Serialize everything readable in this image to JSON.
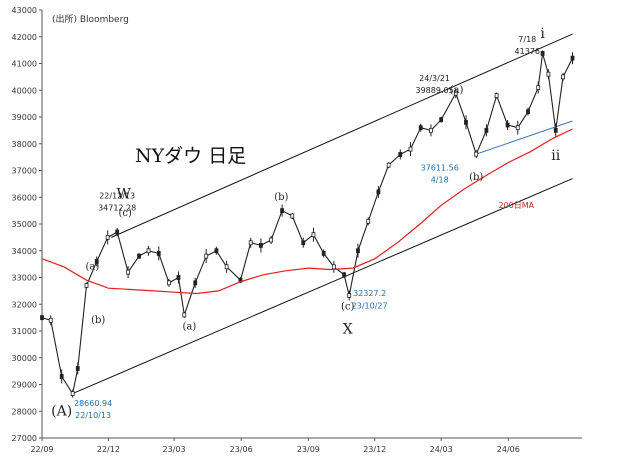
{
  "chart_data": {
    "type": "line",
    "title": "NYダウ 日足",
    "source": "(出所) Bloomberg",
    "ylim": [
      27000,
      43000
    ],
    "y_ticks": [
      27000,
      28000,
      29000,
      30000,
      31000,
      32000,
      33000,
      34000,
      35000,
      36000,
      37000,
      38000,
      39000,
      40000,
      41000,
      42000,
      43000
    ],
    "y_tick_labels": [
      "27000",
      "28000",
      "29000",
      "30000",
      "31000",
      "32000",
      "33000",
      "34000",
      "35000",
      "36000",
      "37000",
      "38000",
      "39000",
      "40000",
      "41000",
      "42000",
      "43000"
    ],
    "x_range": [
      "2022-09",
      "2024-08"
    ],
    "x_ticks": [
      "22/09",
      "22/12",
      "23/03",
      "23/06",
      "23/09",
      "23/12",
      "24/03",
      "24/06"
    ],
    "grid": false,
    "series": [
      {
        "name": "",
        "style": "candlestick-black",
        "x": [
          "2022-09-01",
          "2022-09-13",
          "2022-09-28",
          "2022-10-13",
          "2022-10-20",
          "2022-11-01",
          "2022-11-15",
          "2022-11-30",
          "2022-12-13",
          "2022-12-28",
          "2023-01-12",
          "2023-01-25",
          "2023-02-08",
          "2023-02-22",
          "2023-03-07",
          "2023-03-15",
          "2023-03-30",
          "2023-04-14",
          "2023-04-28",
          "2023-05-12",
          "2023-05-31",
          "2023-06-14",
          "2023-06-28",
          "2023-07-12",
          "2023-07-27",
          "2023-08-10",
          "2023-08-25",
          "2023-09-08",
          "2023-09-22",
          "2023-10-06",
          "2023-10-20",
          "2023-10-27",
          "2023-11-08",
          "2023-11-22",
          "2023-12-06",
          "2023-12-20",
          "2024-01-05",
          "2024-01-19",
          "2024-02-02",
          "2024-02-16",
          "2024-03-01",
          "2024-03-21",
          "2024-04-04",
          "2024-04-18",
          "2024-05-02",
          "2024-05-16",
          "2024-05-31",
          "2024-06-14",
          "2024-06-28",
          "2024-07-12",
          "2024-07-18",
          "2024-07-26",
          "2024-08-05",
          "2024-08-15",
          "2024-08-28"
        ],
        "values": [
          31500,
          31400,
          29300,
          28660,
          29600,
          32700,
          33600,
          34500,
          34700,
          33200,
          33800,
          34000,
          33900,
          32800,
          33000,
          31600,
          32800,
          33800,
          34000,
          33400,
          32900,
          34300,
          34200,
          34400,
          35500,
          35300,
          34300,
          34600,
          33900,
          33400,
          33100,
          32327,
          34000,
          35100,
          36200,
          37200,
          37600,
          37800,
          38600,
          38500,
          38900,
          39889,
          38800,
          37611,
          38500,
          39800,
          38700,
          38600,
          39200,
          40100,
          41376,
          40600,
          38500,
          40500,
          41200
        ]
      },
      {
        "name": "200日MA",
        "style": "line-red",
        "x": [
          "2022-09-01",
          "2022-10-01",
          "2022-11-01",
          "2022-12-01",
          "2023-01-01",
          "2023-02-01",
          "2023-03-01",
          "2023-04-01",
          "2023-05-01",
          "2023-06-01",
          "2023-07-01",
          "2023-08-01",
          "2023-09-01",
          "2023-10-01",
          "2023-11-01",
          "2023-12-01",
          "2024-01-01",
          "2024-02-01",
          "2024-03-01",
          "2024-04-01",
          "2024-05-01",
          "2024-06-01",
          "2024-07-01",
          "2024-08-01",
          "2024-08-28"
        ],
        "values": [
          33700,
          33400,
          32900,
          32600,
          32550,
          32500,
          32450,
          32400,
          32500,
          32850,
          33100,
          33250,
          33350,
          33300,
          33350,
          33700,
          34300,
          35000,
          35700,
          36300,
          36800,
          37300,
          37700,
          38200,
          38550
        ]
      }
    ],
    "trend_lines": [
      {
        "from": [
          "2022-10-13",
          28660
        ],
        "to": [
          "2024-08-28",
          36700
        ]
      },
      {
        "from": [
          "2022-12-05",
          34500
        ],
        "to": [
          "2024-08-28",
          42100
        ]
      },
      {
        "from": [
          "2024-04-18",
          37611
        ],
        "to": [
          "2024-08-28",
          38850
        ]
      }
    ],
    "annotations": [
      {
        "text": "22/12/13",
        "x": "2022-12-13",
        "y": 35950,
        "cls": "ann"
      },
      {
        "text": "34712.28",
        "x": "2022-12-13",
        "y": 35500,
        "cls": "ann"
      },
      {
        "text": "W",
        "x": "2022-12-22",
        "y": 35950,
        "cls": "wave-big"
      },
      {
        "text": "(c)",
        "x": "2022-12-24",
        "y": 35300,
        "cls": "wave"
      },
      {
        "text": "(a)",
        "x": "2022-11-09",
        "y": 33300,
        "cls": "wave"
      },
      {
        "text": "(b)",
        "x": "2022-11-17",
        "y": 31300,
        "cls": "wave"
      },
      {
        "text": "(a)",
        "x": "2023-03-22",
        "y": 31050,
        "cls": "wave"
      },
      {
        "text": "(b)",
        "x": "2023-07-26",
        "y": 35900,
        "cls": "wave"
      },
      {
        "text": "(c)",
        "x": "2023-10-25",
        "y": 31800,
        "cls": "wave"
      },
      {
        "text": "X",
        "x": "2023-10-25",
        "y": 30900,
        "cls": "wave-big"
      },
      {
        "text": "32327.2",
        "x": "2023-11-24",
        "y": 32300,
        "cls": "ann-blue"
      },
      {
        "text": "23/10/27",
        "x": "2023-11-24",
        "y": 31850,
        "cls": "ann-blue"
      },
      {
        "text": "24/3/21",
        "x": "2024-02-21",
        "y": 40350,
        "cls": "ann"
      },
      {
        "text": "39889.05",
        "x": "2024-02-21",
        "y": 39900,
        "cls": "ann"
      },
      {
        "text": "(a)",
        "x": "2024-03-22",
        "y": 39900,
        "cls": "wave"
      },
      {
        "text": "37611.56",
        "x": "2024-02-28",
        "y": 37000,
        "cls": "ann-blue"
      },
      {
        "text": "4/18",
        "x": "2024-02-28",
        "y": 36550,
        "cls": "ann-blue"
      },
      {
        "text": "(b)",
        "x": "2024-04-18",
        "y": 36650,
        "cls": "wave"
      },
      {
        "text": "7/18",
        "x": "2024-06-27",
        "y": 41800,
        "cls": "ann"
      },
      {
        "text": "41376",
        "x": "2024-06-27",
        "y": 41350,
        "cls": "ann"
      },
      {
        "text": "i",
        "x": "2024-07-18",
        "y": 41950,
        "cls": "wave-big"
      },
      {
        "text": "ii",
        "x": "2024-08-05",
        "y": 37400,
        "cls": "wave-big"
      },
      {
        "text": "200日MA",
        "x": "2024-06-12",
        "y": 35600,
        "cls": "ma-label"
      },
      {
        "text": "(A)",
        "x": "2022-09-28",
        "y": 27850,
        "cls": "wave-big"
      },
      {
        "text": "28660.94",
        "x": "2022-11-10",
        "y": 28200,
        "cls": "ann-blue"
      },
      {
        "text": "22/10/13",
        "x": "2022-11-10",
        "y": 27750,
        "cls": "ann-blue"
      }
    ]
  }
}
